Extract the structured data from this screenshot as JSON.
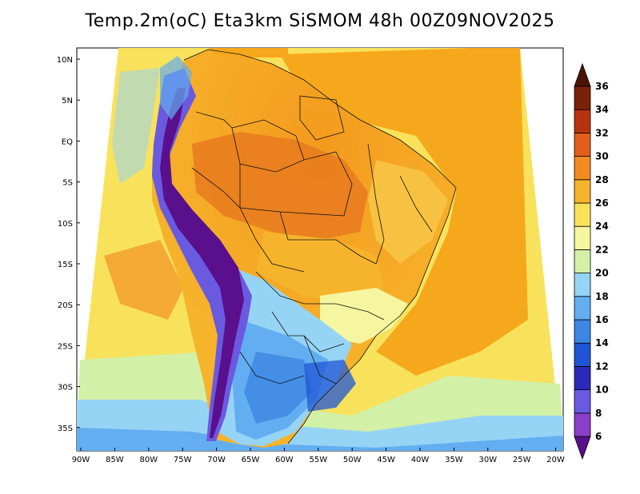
{
  "title": "Temp.2m(oC) Eta3km SiSMOM 48h 00Z09NOV2025",
  "map": {
    "lat_labels": [
      "10N",
      "5N",
      "EQ",
      "5S",
      "10S",
      "15S",
      "20S",
      "25S",
      "30S",
      "35S"
    ],
    "lon_labels": [
      "90W",
      "85W",
      "80W",
      "75W",
      "70W",
      "65W",
      "60W",
      "55W",
      "50W",
      "45W",
      "40W",
      "35W",
      "30W",
      "25W",
      "20W"
    ],
    "ocean_colors": {
      "warm_ocean": "#f6a81c",
      "cool_ocean": "#fbd04a"
    }
  },
  "colorbar": {
    "labels": [
      "6",
      "8",
      "10",
      "12",
      "14",
      "16",
      "18",
      "20",
      "22",
      "24",
      "26",
      "28",
      "30",
      "32",
      "34",
      "36"
    ],
    "colors": [
      "#5a0f8c",
      "#8a3fc8",
      "#6a5ae0",
      "#2a2ab8",
      "#1f55d4",
      "#3c86e4",
      "#63aef0",
      "#96d4f6",
      "#d2f0a6",
      "#f6f6a0",
      "#f8e25c",
      "#f6b42c",
      "#f28c22",
      "#e25e1a",
      "#b83212",
      "#7a2208",
      "#4a1404"
    ]
  }
}
